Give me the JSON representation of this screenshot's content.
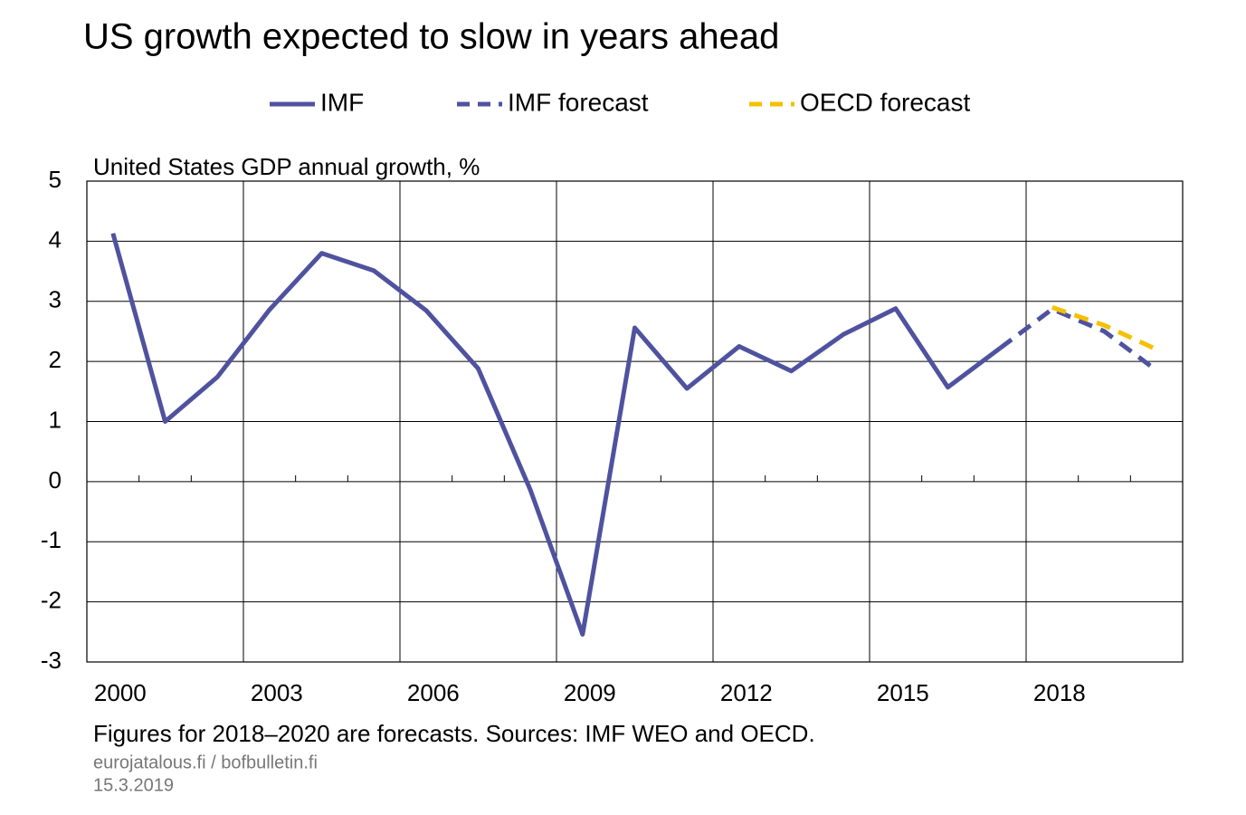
{
  "chart_data": {
    "type": "line",
    "title": "US growth expected to slow in years ahead",
    "y_label": "United States GDP annual growth, %",
    "footnote": "Figures for 2018–2020 are forecasts. Sources: IMF WEO and OECD.",
    "source": "eurojatalous.fi / bofbulletin.fi",
    "date": "15.3.2019",
    "categories": [
      "2000",
      null,
      null,
      "2003",
      null,
      null,
      "2006",
      null,
      null,
      "2009",
      null,
      null,
      "2012",
      null,
      null,
      "2015",
      null,
      null,
      "2018",
      null,
      null
    ],
    "series": [
      {
        "name": "IMF",
        "color": "#4f529e",
        "style": "solid",
        "values": [
          4.13,
          1.0,
          1.74,
          2.86,
          3.8,
          3.51,
          2.85,
          1.88,
          -0.14,
          -2.54,
          2.56,
          1.55,
          2.25,
          1.84,
          2.45,
          2.88,
          1.57,
          2.22,
          null,
          null,
          null
        ]
      },
      {
        "name": "IMF forecast",
        "color": "#4f529e",
        "style": "dashed",
        "values": [
          null,
          null,
          null,
          null,
          null,
          null,
          null,
          null,
          null,
          null,
          null,
          null,
          null,
          null,
          null,
          null,
          null,
          2.22,
          2.87,
          2.5,
          1.85
        ]
      },
      {
        "name": "OECD forecast",
        "color": "#f5c000",
        "style": "dashed",
        "values": [
          null,
          null,
          null,
          null,
          null,
          null,
          null,
          null,
          null,
          null,
          null,
          null,
          null,
          null,
          null,
          null,
          null,
          null,
          2.9,
          2.6,
          2.2
        ]
      }
    ],
    "ylim": [
      -3,
      5
    ],
    "yticks": [
      -3,
      -2,
      -1,
      0,
      1,
      2,
      3,
      4,
      5
    ],
    "grid": true
  }
}
